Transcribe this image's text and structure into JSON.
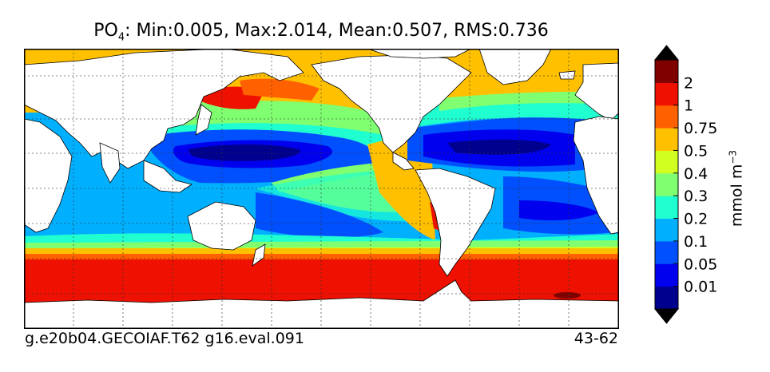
{
  "title": {
    "variable": "PO",
    "variable_sub": "4",
    "stats": ": Min:0.005, Max:2.014, Mean:0.507, RMS:0.736"
  },
  "footer": {
    "left": "g.e20b04.GECOIAF.T62 g16.eval.091",
    "right": "43-62"
  },
  "colorbar": {
    "unit_main": "mmol m",
    "unit_exp": "−3",
    "levels": [
      "0.01",
      "0.05",
      "0.1",
      "0.2",
      "0.3",
      "0.4",
      "0.5",
      "0.75",
      "1",
      "2"
    ],
    "colors": [
      "#00008f",
      "#0000ee",
      "#0050ff",
      "#00b0ff",
      "#20ffd0",
      "#80ff70",
      "#d0ff20",
      "#ffc000",
      "#ff6000",
      "#ee1000",
      "#800000"
    ],
    "extend": "both"
  },
  "map": {
    "land_color": "#ffffff",
    "graticule": "dotted",
    "palette": {
      "vlow": "#00008f",
      "low": "#0000ee",
      "low2": "#0050ff",
      "mid": "#00b0ff",
      "mid2": "#20ffd0",
      "mid3": "#80ff70",
      "yg": "#d0ff20",
      "orange": "#ffc000",
      "dorange": "#ff6000",
      "red": "#ee1000",
      "dred": "#800000"
    }
  }
}
